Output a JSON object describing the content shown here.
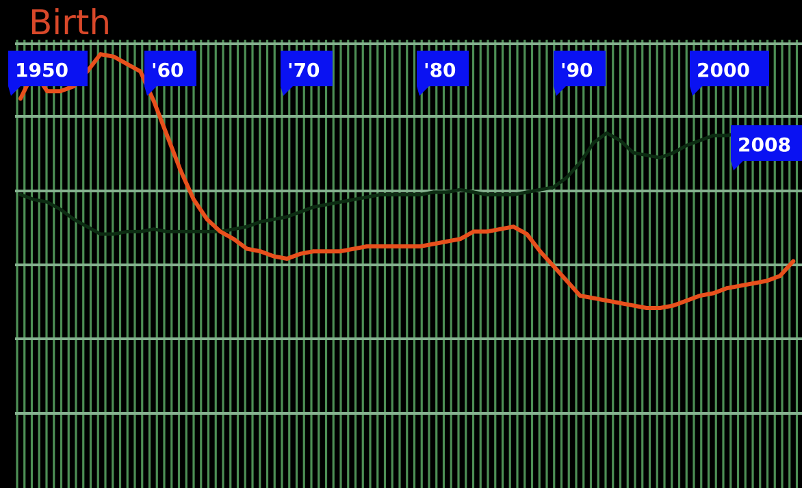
{
  "chart_data": {
    "type": "line",
    "title": "Birth",
    "xlim": [
      1950,
      2008.5
    ],
    "x_markers": [
      "1950",
      "'60",
      "'70",
      "'80",
      "'90",
      "2000",
      "2008"
    ],
    "x": [
      1950,
      1951,
      1952,
      1953,
      1954,
      1955,
      1956,
      1957,
      1958,
      1959,
      1960,
      1961,
      1962,
      1963,
      1964,
      1965,
      1966,
      1967,
      1968,
      1969,
      1970,
      1971,
      1972,
      1973,
      1974,
      1975,
      1976,
      1977,
      1978,
      1979,
      1980,
      1981,
      1982,
      1983,
      1984,
      1985,
      1986,
      1987,
      1988,
      1989,
      1990,
      1991,
      1992,
      1993,
      1994,
      1995,
      1996,
      1997,
      1998,
      1999,
      2000,
      2001,
      2002,
      2003,
      2004,
      2005,
      2006,
      2007,
      2008
    ],
    "grid": true,
    "series": [
      {
        "color": "#e8501c",
        "values": [
          135,
          146,
          138,
          138,
          140,
          146,
          153,
          152,
          149,
          146,
          134,
          120,
          106,
          94,
          86,
          81,
          78,
          74,
          73,
          71,
          70,
          72,
          73,
          73,
          73,
          74,
          75,
          75,
          75,
          75,
          75,
          76,
          77,
          78,
          81,
          81,
          82,
          83,
          80,
          73,
          67,
          61,
          55,
          54,
          53,
          52,
          51,
          50,
          50,
          51,
          53,
          55,
          56,
          58,
          59,
          60,
          61,
          63,
          69
        ]
      },
      {
        "color": "#0c2c12",
        "values": [
          96,
          94,
          93,
          90,
          86,
          83,
          80,
          80,
          81,
          81,
          82,
          81,
          81,
          81,
          81,
          81,
          82,
          83,
          85,
          86,
          87,
          89,
          91,
          92,
          93,
          94,
          95,
          96,
          96,
          96,
          96,
          97,
          97,
          98,
          97,
          96,
          96,
          96,
          97,
          98,
          99,
          103,
          109,
          117,
          121,
          118,
          113,
          112,
          111,
          113,
          116,
          118,
          120,
          120,
          121,
          120,
          119,
          117,
          115
        ]
      }
    ]
  },
  "colors": {
    "background": "#000000",
    "title": "#d9482a",
    "grid_vertical": "#4d8f55",
    "grid_horizontal": "#86b290",
    "marker_flag": "#0a12f2",
    "marker_text": "#ffffff"
  }
}
